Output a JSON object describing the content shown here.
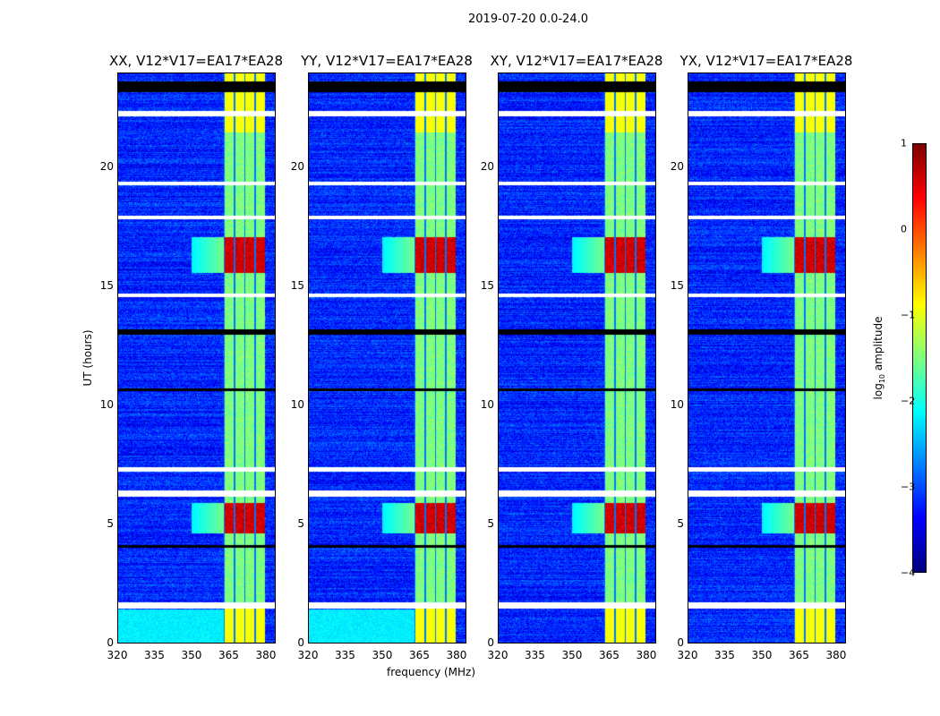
{
  "title": "2019-07-20 0.0-24.0",
  "chart_data": {
    "type": "heatmap",
    "title": "2019-07-20 0.0-24.0",
    "xlabel": "frequency (MHz)",
    "ylabel": "UT (hours)",
    "xlim": [
      320,
      384
    ],
    "ylim": [
      0,
      24
    ],
    "xticks": [
      "320",
      "335",
      "350",
      "365",
      "380"
    ],
    "xtick_values": [
      320,
      335,
      350,
      365,
      380
    ],
    "yticks": [
      "0",
      "5",
      "10",
      "15",
      "20"
    ],
    "ytick_values": [
      0,
      5,
      10,
      15,
      20
    ],
    "panels": [
      {
        "title": "XX, V12*V17=EA17*EA28",
        "low_freq_excess": true
      },
      {
        "title": "YY, V12*V17=EA17*EA28",
        "low_freq_excess": true
      },
      {
        "title": "XY, V12*V17=EA17*EA28",
        "low_freq_excess": false
      },
      {
        "title": "YX, V12*V17=EA17*EA28",
        "low_freq_excess": false
      }
    ],
    "colorbar": {
      "label": "log10 amplitude",
      "label_main": "log",
      "label_sub": "10",
      "label_rest": " amplitude",
      "range": [
        -4,
        1
      ],
      "ticks": [
        "1",
        "0",
        "−1",
        "−2",
        "−3",
        "−4"
      ],
      "tick_values": [
        1,
        0,
        -1,
        -2,
        -3,
        -4
      ],
      "colormap": "jet"
    },
    "background_level": -3.2,
    "rfi_band_mhz": [
      363,
      380
    ],
    "rfi_level": -1.5,
    "strong_rfi_hours": [
      [
        4.6,
        5.9
      ],
      [
        15.6,
        17.1
      ]
    ],
    "strong_rfi_level": 0.6,
    "flagged_hours_white": [
      [
        1.45,
        1.7
      ],
      [
        6.15,
        6.4
      ],
      [
        7.2,
        7.4
      ],
      [
        14.55,
        14.7
      ],
      [
        17.85,
        18.0
      ],
      [
        19.3,
        19.45
      ],
      [
        22.2,
        22.4
      ]
    ],
    "flagged_hours_black": [
      [
        13.0,
        13.2
      ],
      [
        23.2,
        23.65
      ],
      [
        10.6,
        10.7
      ],
      [
        4.0,
        4.1
      ]
    ]
  }
}
